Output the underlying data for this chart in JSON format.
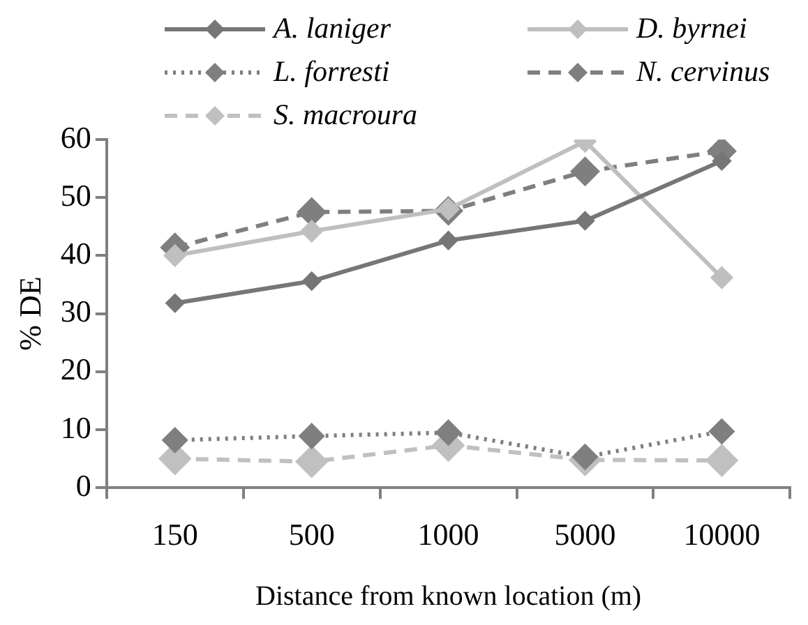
{
  "chart_data": {
    "type": "line",
    "xlabel": "Distance from known location (m)",
    "ylabel": "% DE",
    "categories": [
      "150",
      "500",
      "1000",
      "5000",
      "10000"
    ],
    "series": [
      {
        "name": "A. laniger",
        "color": "#767676",
        "values": [
          31.8,
          35.6,
          42.6,
          46,
          56.3
        ],
        "line_style": "solid"
      },
      {
        "name": "D. byrnei",
        "color": "#bfbfbf",
        "values": [
          40,
          44.2,
          48,
          59.7,
          36.2
        ],
        "line_style": "solid"
      },
      {
        "name": "L. forresti",
        "color": "#7f7f7f",
        "values": [
          8.2,
          8.9,
          9.5,
          5.3,
          9.7
        ],
        "line_style": "dotted"
      },
      {
        "name": "N. cervinus",
        "color": "#7f7f7f",
        "values": [
          41.4,
          47.5,
          47.7,
          54.5,
          58
        ],
        "line_style": "dashed"
      },
      {
        "name": "S. macroura",
        "color": "#c0c0c0",
        "values": [
          5,
          4.5,
          7.3,
          4.8,
          4.7
        ],
        "line_style": "dashed"
      }
    ],
    "ylim": [
      0,
      60
    ],
    "yticks": [
      0,
      10,
      20,
      30,
      40,
      50,
      60
    ],
    "grid": false,
    "legend": "top",
    "marker": "diamond"
  }
}
